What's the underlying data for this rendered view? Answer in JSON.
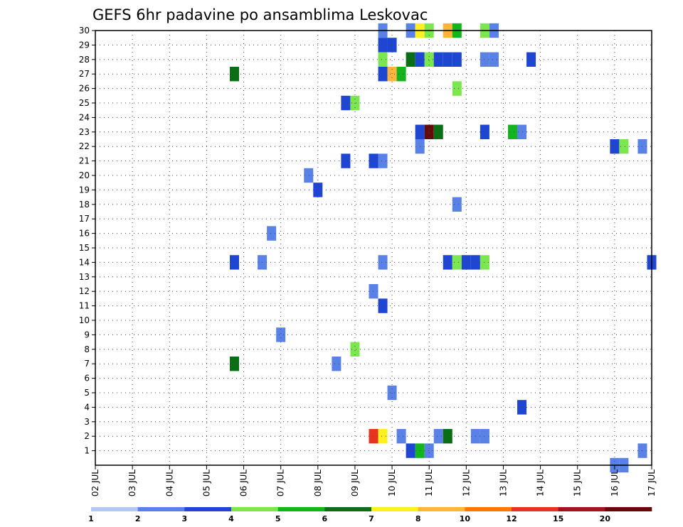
{
  "chart_data": {
    "type": "heatmap",
    "title": "GEFS 6hr padavine po ansamblima Leskovac",
    "xlabel": "",
    "ylabel": "",
    "x_tick_labels": [
      "02 JUL",
      "03 JUL",
      "04 JUL",
      "05 JUL",
      "06 JUL",
      "07 JUL",
      "08 JUL",
      "09 JUL",
      "10 JUL",
      "11 JUL",
      "12 JUL",
      "13 JUL",
      "14 JUL",
      "15 JUL",
      "16 JUL",
      "17 JUL"
    ],
    "xlim": [
      0,
      60
    ],
    "steps_per_day": 4,
    "y_tick_labels": [
      "1",
      "2",
      "3",
      "4",
      "5",
      "6",
      "7",
      "8",
      "9",
      "10",
      "11",
      "12",
      "13",
      "14",
      "15",
      "16",
      "17",
      "18",
      "19",
      "20",
      "21",
      "22",
      "23",
      "24",
      "25",
      "26",
      "27",
      "28",
      "29",
      "30"
    ],
    "ylim": [
      0,
      30
    ],
    "grid": true,
    "colorbar": {
      "labels": [
        "1",
        "2",
        "3",
        "4",
        "5",
        "6",
        "7",
        "8",
        "10",
        "12",
        "15",
        "20"
      ],
      "colors": [
        "#b4c8f5",
        "#5a82e6",
        "#1e46d2",
        "#7ce650",
        "#14b41e",
        "#0a6e14",
        "#fff01e",
        "#ffb43c",
        "#ff780a",
        "#e6321e",
        "#a0141e",
        "#640a0a"
      ]
    },
    "cells": [
      [
        31,
        30,
        1
      ],
      [
        34,
        30,
        1
      ],
      [
        35,
        30,
        6
      ],
      [
        36,
        30,
        3
      ],
      [
        38,
        30,
        7
      ],
      [
        39,
        30,
        4
      ],
      [
        42,
        30,
        3
      ],
      [
        43,
        30,
        1
      ],
      [
        31,
        29,
        2
      ],
      [
        32,
        29,
        2
      ],
      [
        31,
        28,
        3
      ],
      [
        34,
        28,
        5
      ],
      [
        35,
        28,
        2
      ],
      [
        36,
        28,
        3
      ],
      [
        37,
        28,
        2
      ],
      [
        38,
        28,
        2
      ],
      [
        39,
        28,
        2
      ],
      [
        42,
        28,
        1
      ],
      [
        43,
        28,
        1
      ],
      [
        47,
        28,
        2
      ],
      [
        15,
        27,
        5
      ],
      [
        31,
        27,
        2
      ],
      [
        32,
        27,
        7
      ],
      [
        33,
        27,
        4
      ],
      [
        39,
        26,
        3
      ],
      [
        27,
        25,
        2
      ],
      [
        28,
        25,
        3
      ],
      [
        35,
        23,
        2
      ],
      [
        36,
        23,
        11
      ],
      [
        37,
        23,
        5
      ],
      [
        42,
        23,
        2
      ],
      [
        45,
        23,
        4
      ],
      [
        46,
        23,
        1
      ],
      [
        35,
        22,
        1
      ],
      [
        56,
        22,
        2
      ],
      [
        57,
        22,
        3
      ],
      [
        59,
        22,
        1
      ],
      [
        27,
        21,
        2
      ],
      [
        30,
        21,
        2
      ],
      [
        31,
        21,
        1
      ],
      [
        23,
        20,
        1
      ],
      [
        24,
        19,
        2
      ],
      [
        39,
        18,
        1
      ],
      [
        19,
        16,
        1
      ],
      [
        15,
        14,
        2
      ],
      [
        18,
        14,
        1
      ],
      [
        31,
        14,
        1
      ],
      [
        38,
        14,
        2
      ],
      [
        39,
        14,
        3
      ],
      [
        40,
        14,
        2
      ],
      [
        41,
        14,
        2
      ],
      [
        42,
        14,
        3
      ],
      [
        60,
        14,
        2
      ],
      [
        30,
        12,
        1
      ],
      [
        31,
        11,
        2
      ],
      [
        20,
        9,
        1
      ],
      [
        28,
        8,
        3
      ],
      [
        15,
        7,
        5
      ],
      [
        26,
        7,
        1
      ],
      [
        32,
        5,
        1
      ],
      [
        46,
        4,
        2
      ],
      [
        30,
        2,
        9
      ],
      [
        31,
        2,
        6
      ],
      [
        33,
        2,
        1
      ],
      [
        37,
        2,
        1
      ],
      [
        38,
        2,
        5
      ],
      [
        41,
        2,
        1
      ],
      [
        42,
        2,
        1
      ],
      [
        34,
        1,
        2
      ],
      [
        35,
        1,
        4
      ],
      [
        36,
        1,
        1
      ],
      [
        59,
        1,
        1
      ],
      [
        56,
        0,
        1
      ],
      [
        57,
        0,
        1
      ]
    ]
  }
}
